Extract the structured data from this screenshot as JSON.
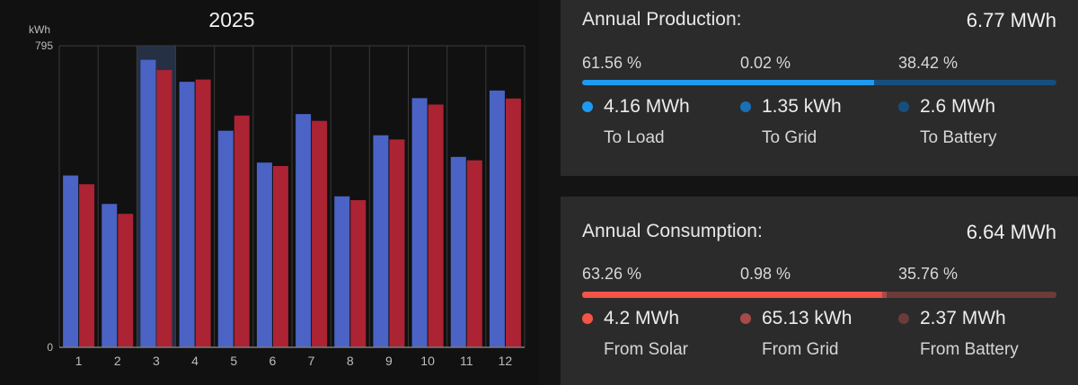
{
  "chart_data": {
    "type": "bar",
    "title": "2025",
    "ylabel": "kWh",
    "ylim": [
      0,
      795
    ],
    "yticks": [
      "795",
      "0"
    ],
    "categories": [
      "1",
      "2",
      "3",
      "4",
      "5",
      "6",
      "7",
      "8",
      "9",
      "10",
      "11",
      "12"
    ],
    "highlighted_category": "3",
    "grid": true,
    "series": [
      {
        "color": "#4a63c4",
        "values": [
          453,
          378,
          758,
          700,
          571,
          487,
          615,
          398,
          559,
          657,
          502,
          677
        ]
      },
      {
        "color": "#ac2333",
        "values": [
          430,
          352,
          731,
          706,
          611,
          478,
          597,
          388,
          548,
          640,
          493,
          656
        ]
      }
    ]
  },
  "production": {
    "title": "Annual Production:",
    "total": "6.77 MWh",
    "items": [
      {
        "pct": "61.56 %",
        "fraction": 0.6156,
        "value": "4.16 MWh",
        "label": "To Load",
        "color": "#1e9bf0"
      },
      {
        "pct": "0.02 %",
        "fraction": 0.0002,
        "value": "1.35 kWh",
        "label": "To Grid",
        "color": "#1a6fb5"
      },
      {
        "pct": "38.42 %",
        "fraction": 0.3842,
        "value": "2.6 MWh",
        "label": "To Battery",
        "color": "#164f7e"
      }
    ]
  },
  "consumption": {
    "title": "Annual Consumption:",
    "total": "6.64 MWh",
    "items": [
      {
        "pct": "63.26 %",
        "fraction": 0.6326,
        "value": "4.2 MWh",
        "label": "From Solar",
        "color": "#f25447"
      },
      {
        "pct": "0.98 %",
        "fraction": 0.0098,
        "value": "65.13 kWh",
        "label": "From Grid",
        "color": "#a84a48"
      },
      {
        "pct": "35.76 %",
        "fraction": 0.3576,
        "value": "2.37 MWh",
        "label": "From Battery",
        "color": "#6b3b3a"
      }
    ]
  }
}
